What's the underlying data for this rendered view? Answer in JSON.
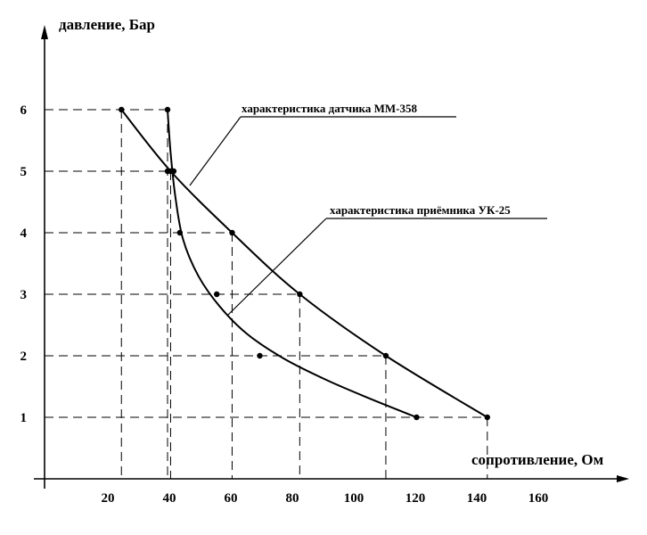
{
  "chart_data": {
    "type": "line",
    "xlabel": "сопротивление, Ом",
    "ylabel": "давление, Бар",
    "x_ticks": [
      20,
      40,
      60,
      80,
      100,
      120,
      140,
      160
    ],
    "y_ticks": [
      1,
      2,
      3,
      4,
      5,
      6
    ],
    "xlim": [
      0,
      180
    ],
    "ylim": [
      0,
      7
    ],
    "grid": false,
    "series": [
      {
        "name": "характеристика датчика ММ-358",
        "points": [
          {
            "x": 25,
            "y": 6
          },
          {
            "x": 41,
            "y": 5
          },
          {
            "x": 61,
            "y": 4
          },
          {
            "x": 83,
            "y": 3
          },
          {
            "x": 111,
            "y": 2
          },
          {
            "x": 144,
            "y": 1
          }
        ]
      },
      {
        "name": "характеристика приёмника УК-25",
        "points": [
          {
            "x": 40,
            "y": 6
          },
          {
            "x": 42,
            "y": 5
          },
          {
            "x": 44,
            "y": 4
          },
          {
            "x": 56,
            "y": 3
          },
          {
            "x": 70,
            "y": 2
          },
          {
            "x": 121,
            "y": 1
          }
        ],
        "extra_points": [
          {
            "x": 40,
            "y": 5
          }
        ]
      }
    ],
    "annotations": [
      {
        "text": "характеристика датчика ММ-358",
        "series": 0
      },
      {
        "text": "характеристика приёмника УК-25",
        "series": 1
      }
    ]
  }
}
